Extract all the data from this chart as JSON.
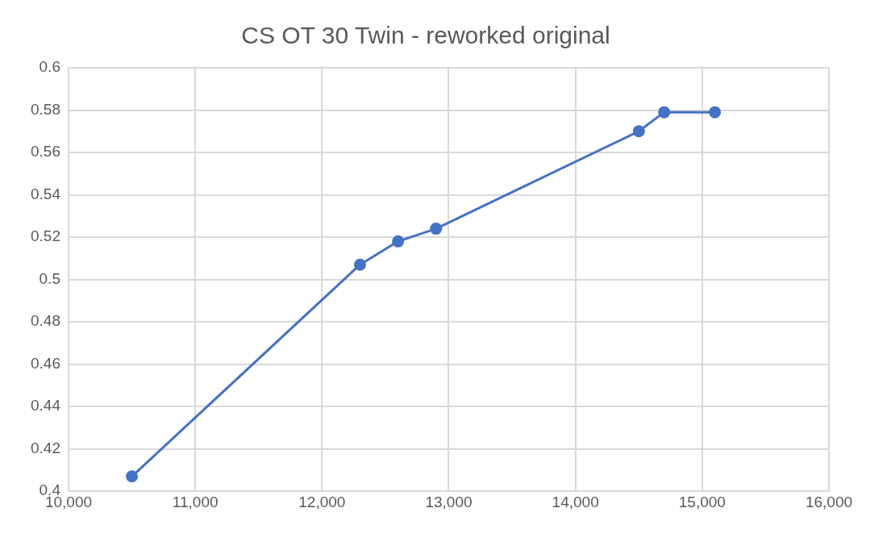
{
  "chart_data": {
    "type": "line",
    "title": "CS OT 30 Twin - reworked original",
    "x": [
      10500,
      12300,
      12600,
      12900,
      14500,
      14700,
      15100
    ],
    "series": [
      {
        "color": "#4472c4",
        "values": [
          0.407,
          0.507,
          0.518,
          0.524,
          0.57,
          0.579,
          0.579
        ]
      }
    ],
    "xlim": [
      10000,
      16000
    ],
    "xticks": [
      {
        "value": 10000,
        "label": "10,000"
      },
      {
        "value": 11000,
        "label": "11,000"
      },
      {
        "value": 12000,
        "label": "12,000"
      },
      {
        "value": 13000,
        "label": "13,000"
      },
      {
        "value": 14000,
        "label": "14,000"
      },
      {
        "value": 15000,
        "label": "15,000"
      },
      {
        "value": 16000,
        "label": "16,000"
      }
    ],
    "ylim": [
      0.4,
      0.6
    ],
    "yticks": [
      0.4,
      0.42,
      0.44,
      0.46,
      0.48,
      0.5,
      0.52,
      0.54,
      0.56,
      0.58,
      0.6
    ],
    "grid": true,
    "legend": false,
    "marker": "circle",
    "line_style": "solid"
  }
}
